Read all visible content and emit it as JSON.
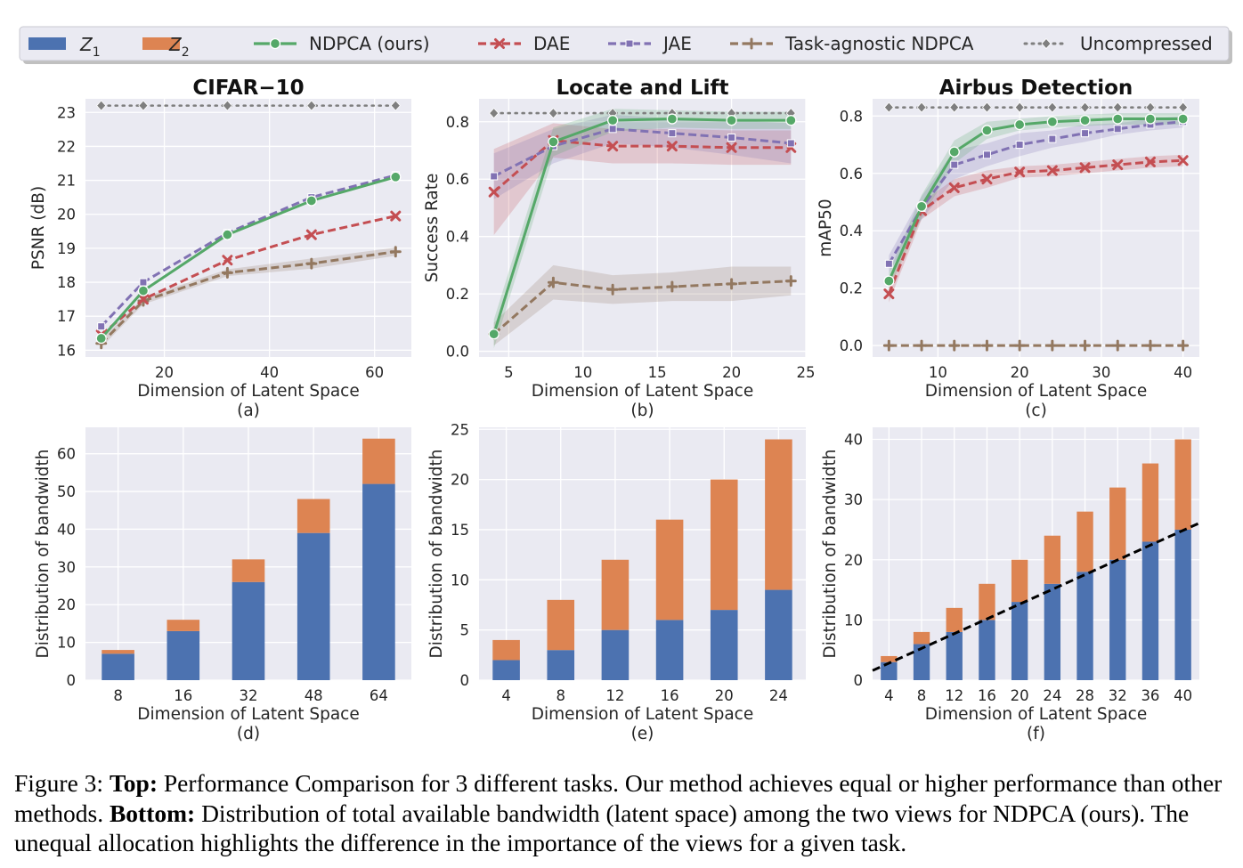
{
  "legend": {
    "entries": [
      {
        "key": "z1",
        "main": "Z",
        "sub": "1",
        "kind": "patch",
        "color": "#4c72b0"
      },
      {
        "key": "z2",
        "main": "Z",
        "sub": "2",
        "kind": "patch",
        "color": "#dd8452"
      },
      {
        "key": "ndpca",
        "label": "NDPCA (ours)",
        "kind": "line",
        "marker": "circle",
        "dash": "solid",
        "color": "#55a868"
      },
      {
        "key": "dae",
        "label": "DAE",
        "kind": "line",
        "marker": "x",
        "dash": "dashed",
        "color": "#c44e52"
      },
      {
        "key": "jae",
        "label": "JAE",
        "kind": "line",
        "marker": "square",
        "dash": "dashed",
        "color": "#8172b3"
      },
      {
        "key": "tagnostic",
        "label": "Task-agnostic NDPCA",
        "kind": "line",
        "marker": "plus",
        "dash": "dashed",
        "color": "#937860"
      },
      {
        "key": "uncompressed",
        "label": "Uncompressed",
        "kind": "line",
        "marker": "diamond",
        "dash": "dotted",
        "color": "#7f7f7f"
      }
    ]
  },
  "chart_data": [
    {
      "id": "a",
      "type": "line",
      "title": "CIFAR−10",
      "xlabel": "Dimension of Latent Space",
      "ylabel": "PSNR (dB)",
      "sublabel": "(a)",
      "xlim": [
        5,
        67
      ],
      "ylim": [
        15.8,
        23.4
      ],
      "xticks": [
        20,
        40,
        60
      ],
      "yticks": [
        16,
        17,
        18,
        19,
        20,
        21,
        22,
        23
      ],
      "x": [
        8,
        16,
        32,
        48,
        64
      ],
      "series": [
        {
          "key": "uncompressed",
          "values": [
            23.2,
            23.2,
            23.2,
            23.2,
            23.2
          ]
        },
        {
          "key": "tagnostic",
          "values": [
            16.2,
            17.45,
            18.28,
            18.55,
            18.9
          ],
          "band": [
            0.12,
            0.1,
            0.1,
            0.15,
            0.12
          ]
        },
        {
          "key": "dae",
          "values": [
            16.45,
            17.5,
            18.65,
            19.4,
            19.95
          ]
        },
        {
          "key": "jae",
          "values": [
            16.7,
            18.0,
            19.45,
            20.5,
            21.15
          ]
        },
        {
          "key": "ndpca",
          "values": [
            16.35,
            17.75,
            19.4,
            20.4,
            21.1
          ]
        }
      ]
    },
    {
      "id": "b",
      "type": "line",
      "title": "Locate and Lift",
      "xlabel": "Dimension of Latent Space",
      "ylabel": "Success Rate",
      "sublabel": "(b)",
      "xlim": [
        3,
        25
      ],
      "ylim": [
        -0.02,
        0.88
      ],
      "xticks": [
        5,
        10,
        15,
        20,
        25
      ],
      "yticks": [
        0.0,
        0.2,
        0.4,
        0.6,
        0.8
      ],
      "x": [
        4,
        8,
        12,
        16,
        20,
        24
      ],
      "series": [
        {
          "key": "uncompressed",
          "values": [
            0.83,
            0.83,
            0.83,
            0.83,
            0.83,
            0.83
          ]
        },
        {
          "key": "tagnostic",
          "values": [
            0.06,
            0.24,
            0.215,
            0.225,
            0.235,
            0.245
          ],
          "band": [
            0.04,
            0.06,
            0.05,
            0.05,
            0.06,
            0.05
          ]
        },
        {
          "key": "dae",
          "values": [
            0.555,
            0.735,
            0.715,
            0.715,
            0.71,
            0.71
          ],
          "band": [
            0.15,
            0.06,
            0.06,
            0.06,
            0.06,
            0.06
          ]
        },
        {
          "key": "jae",
          "values": [
            0.61,
            0.715,
            0.775,
            0.76,
            0.745,
            0.725
          ],
          "band": [
            0.08,
            0.06,
            0.05,
            0.05,
            0.06,
            0.07
          ]
        },
        {
          "key": "ndpca",
          "values": [
            0.06,
            0.73,
            0.805,
            0.81,
            0.805,
            0.805
          ],
          "band": [
            0.05,
            0.05,
            0.04,
            0.03,
            0.03,
            0.03
          ]
        }
      ]
    },
    {
      "id": "c",
      "type": "line",
      "title": "Airbus Detection",
      "xlabel": "Dimension of Latent Space",
      "ylabel": "mAP50",
      "sublabel": "(c)",
      "xlim": [
        2,
        42
      ],
      "ylim": [
        -0.04,
        0.86
      ],
      "xticks": [
        10,
        20,
        30,
        40
      ],
      "yticks": [
        0.0,
        0.2,
        0.4,
        0.6,
        0.8
      ],
      "x": [
        4,
        8,
        12,
        16,
        20,
        24,
        28,
        32,
        36,
        40
      ],
      "series": [
        {
          "key": "uncompressed",
          "values": [
            0.83,
            0.83,
            0.83,
            0.83,
            0.83,
            0.83,
            0.83,
            0.83,
            0.83,
            0.83
          ]
        },
        {
          "key": "tagnostic",
          "values": [
            0.0,
            0.0,
            0.0,
            0.0,
            0.0,
            0.0,
            0.0,
            0.0,
            0.0,
            0.0
          ]
        },
        {
          "key": "dae",
          "values": [
            0.18,
            0.47,
            0.55,
            0.58,
            0.605,
            0.61,
            0.62,
            0.63,
            0.64,
            0.645
          ],
          "band": [
            0.03,
            0.03,
            0.03,
            0.03,
            0.02,
            0.02,
            0.02,
            0.02,
            0.02,
            0.02
          ]
        },
        {
          "key": "jae",
          "values": [
            0.285,
            0.48,
            0.63,
            0.665,
            0.7,
            0.72,
            0.74,
            0.755,
            0.77,
            0.78
          ],
          "band": [
            0.03,
            0.04,
            0.05,
            0.04,
            0.04,
            0.03,
            0.03,
            0.02,
            0.02,
            0.02
          ]
        },
        {
          "key": "ndpca",
          "values": [
            0.225,
            0.485,
            0.675,
            0.75,
            0.77,
            0.78,
            0.785,
            0.79,
            0.79,
            0.79
          ],
          "band": [
            0.03,
            0.04,
            0.04,
            0.03,
            0.02,
            0.02,
            0.02,
            0.02,
            0.02,
            0.02
          ]
        }
      ]
    },
    {
      "id": "d",
      "type": "bar",
      "stacked": true,
      "xlabel": "Dimension of Latent Space",
      "ylabel": "Distribution of bandwidth",
      "sublabel": "(d)",
      "categories": [
        "8",
        "16",
        "32",
        "48",
        "64"
      ],
      "ylim": [
        0,
        67
      ],
      "yticks": [
        0,
        10,
        20,
        30,
        40,
        50,
        60
      ],
      "series": [
        {
          "key": "z1",
          "values": [
            7,
            13,
            26,
            39,
            52
          ]
        },
        {
          "key": "z2",
          "values": [
            1,
            3,
            6,
            9,
            12
          ]
        }
      ]
    },
    {
      "id": "e",
      "type": "bar",
      "stacked": true,
      "xlabel": "Dimension of Latent Space",
      "ylabel": "Distribution of bandwidth",
      "sublabel": "(e)",
      "categories": [
        "4",
        "8",
        "12",
        "16",
        "20",
        "24"
      ],
      "ylim": [
        0,
        25.2
      ],
      "yticks": [
        0,
        5,
        10,
        15,
        20,
        25
      ],
      "series": [
        {
          "key": "z1",
          "values": [
            2,
            3,
            5,
            6,
            7,
            9
          ]
        },
        {
          "key": "z2",
          "values": [
            2,
            5,
            7,
            10,
            13,
            15
          ]
        }
      ]
    },
    {
      "id": "f",
      "type": "bar",
      "stacked": true,
      "xlabel": "Dimension of Latent Space",
      "ylabel": "Distribution of bandwidth",
      "sublabel": "(f)",
      "categories": [
        "4",
        "8",
        "12",
        "16",
        "20",
        "24",
        "28",
        "32",
        "36",
        "40"
      ],
      "ylim": [
        0,
        42
      ],
      "yticks": [
        0,
        10,
        20,
        30,
        40
      ],
      "series": [
        {
          "key": "z1",
          "values": [
            3,
            6,
            8,
            10,
            13,
            16,
            18,
            20,
            23,
            25
          ]
        },
        {
          "key": "z2",
          "values": [
            1,
            2,
            4,
            6,
            7,
            8,
            10,
            12,
            13,
            15
          ]
        }
      ],
      "trendline": {
        "from": [
          -0.5,
          1.6
        ],
        "to": [
          9.5,
          26.1
        ],
        "dash": "dashed",
        "color": "#000000"
      }
    }
  ],
  "caption": {
    "prefix": "Figure 3: ",
    "top_label": "Top:",
    "top_text": " Performance Comparison for 3 different tasks. Our method achieves equal or higher performance than other methods. ",
    "bottom_label": "Bottom:",
    "bottom_text": " Distribution of total available bandwidth (latent space) among the two views for NDPCA (ours). The unequal allocation highlights the difference in the importance of the views for a given task."
  }
}
